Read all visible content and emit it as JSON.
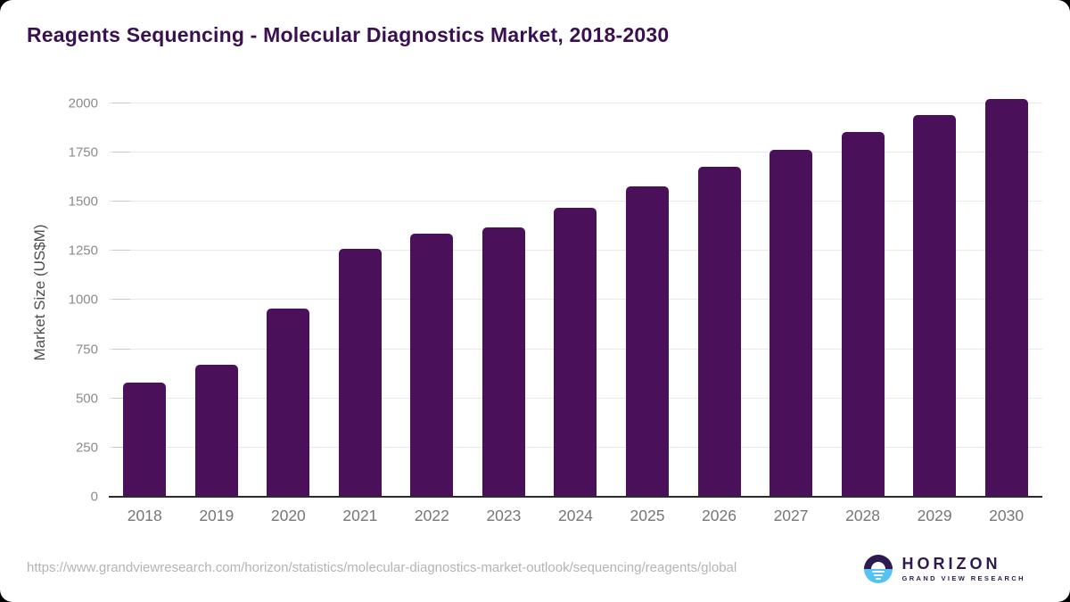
{
  "header": {
    "title": "Reagents Sequencing - Molecular Diagnostics Market, 2018-2030"
  },
  "chart_data": {
    "type": "bar",
    "title": "Reagents Sequencing - Molecular Diagnostics Market, 2018-2030",
    "categories": [
      "2018",
      "2019",
      "2020",
      "2021",
      "2022",
      "2023",
      "2024",
      "2025",
      "2026",
      "2027",
      "2028",
      "2029",
      "2030"
    ],
    "values": [
      580,
      670,
      955,
      1260,
      1335,
      1370,
      1470,
      1575,
      1675,
      1765,
      1855,
      1940,
      2020
    ],
    "xlabel": "",
    "ylabel": "Market Size (US$M)",
    "ylim": [
      0,
      2000
    ],
    "ytick_step": 250,
    "grid": "horizontal",
    "legend": "none",
    "bar_color": "#4a1059"
  },
  "colors": {
    "bar": "#4a1059",
    "title_text": "#3a1051",
    "tick_text": "#8b8b90",
    "x_tick_text": "#76767a",
    "y_axis_title_text": "#4d4d52",
    "gridline": "#e9e9ec",
    "axis_line": "#2b2b30",
    "url_text": "#b4b4b7",
    "logo_purple": "#2d1a4e",
    "logo_blue": "#55c3f2",
    "card_background": "#ffffff",
    "page_background": "#000000"
  },
  "footer": {
    "url": "https://www.grandviewresearch.com/horizon/statistics/molecular-diagnostics-market-outlook/sequencing/reagents/global"
  },
  "logo": {
    "icon": "horizon-sun-icon",
    "wordmark": "HORIZON",
    "subtitle": "GRAND VIEW RESEARCH"
  }
}
